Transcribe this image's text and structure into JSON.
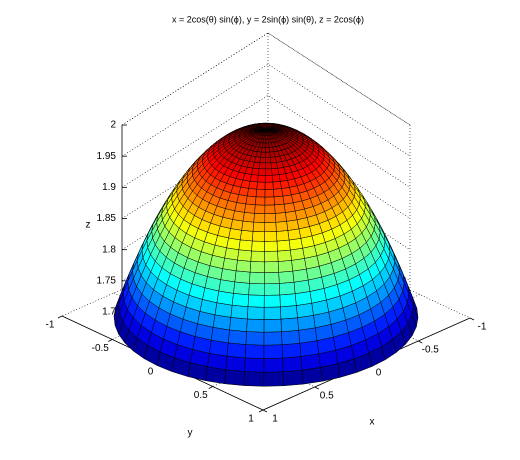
{
  "chart_data": {
    "type": "surface",
    "title": "x = 2cos(θ) sin(ϕ), y = 2sin(ϕ) sin(θ), z = 2cos(ϕ)",
    "xlabel": "x",
    "ylabel": "y",
    "zlabel": "z",
    "surface": {
      "radius": 2,
      "colormap": "jet"
    },
    "xlim": [
      -1,
      1
    ],
    "xticks": [
      -1,
      -0.5,
      0,
      0.5,
      1
    ],
    "ylim": [
      -1,
      1
    ],
    "yticks": [
      -1,
      -0.5,
      0,
      0.5,
      1
    ],
    "zlim": [
      1.7,
      2
    ],
    "zticks": [
      1.7,
      1.75,
      1.8,
      1.85,
      1.9,
      1.95,
      2
    ],
    "grid": true
  }
}
